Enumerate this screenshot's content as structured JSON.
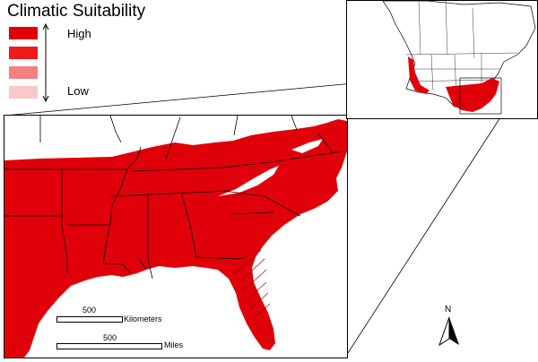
{
  "legend": {
    "title": "Climatic Suitability",
    "high_label": "High",
    "low_label": "Low",
    "classes": [
      {
        "level": "highest",
        "color": "#e0000a"
      },
      {
        "level": "high",
        "color": "#ee1a1a"
      },
      {
        "level": "moderate",
        "color": "#f58080"
      },
      {
        "level": "low",
        "color": "#fbc8c8"
      }
    ]
  },
  "scalebar": {
    "km_value": "500",
    "km_unit": "Kilometers",
    "mi_value": "500",
    "mi_unit": "Miles"
  },
  "north_arrow": {
    "label": "N"
  },
  "colors": {
    "suitability_red": "#e0000a",
    "boundary": "#000000",
    "background": "#ffffff"
  }
}
